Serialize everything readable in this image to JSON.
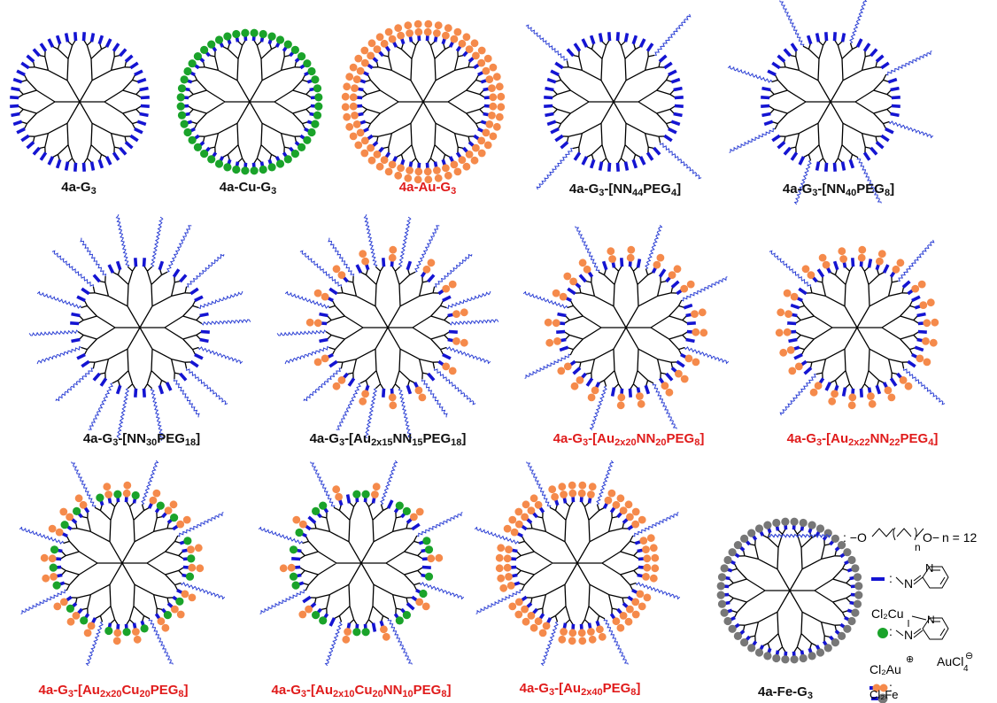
{
  "colors": {
    "ligand": "#1414d2",
    "cu": "#1aa32a",
    "au": "#f58a4b",
    "fe": "#777777",
    "peg": "#2b3fd4",
    "branch": "#000000",
    "label_black": "#111111",
    "label_red": "#e01b1b"
  },
  "labels": [
    {
      "id": "g3",
      "parts": [
        {
          "t": "4a-G"
        },
        {
          "t": "3",
          "s": "sub"
        }
      ],
      "red": false
    },
    {
      "id": "cu_g3",
      "parts": [
        {
          "t": "4a-Cu-G"
        },
        {
          "t": "3",
          "s": "sub"
        }
      ],
      "red": false
    },
    {
      "id": "au_g3",
      "parts": [
        {
          "t": "4a-Au-G"
        },
        {
          "t": "3",
          "s": "sub"
        }
      ],
      "red": true
    },
    {
      "id": "nn44peg4",
      "parts": [
        {
          "t": "4a-G"
        },
        {
          "t": "3",
          "s": "sub"
        },
        {
          "t": "-[NN"
        },
        {
          "t": "44",
          "s": "sub"
        },
        {
          "t": "PEG"
        },
        {
          "t": "4",
          "s": "sub"
        },
        {
          "t": "]"
        }
      ],
      "red": false
    },
    {
      "id": "nn40peg8",
      "parts": [
        {
          "t": "4a-G"
        },
        {
          "t": "3",
          "s": "sub"
        },
        {
          "t": "-[NN"
        },
        {
          "t": "40",
          "s": "sub"
        },
        {
          "t": "PEG"
        },
        {
          "t": "8",
          "s": "sub"
        },
        {
          "t": "]"
        }
      ],
      "red": false
    },
    {
      "id": "nn30peg18",
      "parts": [
        {
          "t": "4a-G"
        },
        {
          "t": "3",
          "s": "sub"
        },
        {
          "t": "-[NN"
        },
        {
          "t": "30",
          "s": "sub"
        },
        {
          "t": "PEG"
        },
        {
          "t": "18",
          "s": "sub"
        },
        {
          "t": "]"
        }
      ],
      "red": false
    },
    {
      "id": "au15nn15peg18",
      "parts": [
        {
          "t": "4a-G"
        },
        {
          "t": "3",
          "s": "sub"
        },
        {
          "t": "-[Au"
        },
        {
          "t": "2x15",
          "s": "sub"
        },
        {
          "t": "NN"
        },
        {
          "t": "15",
          "s": "sub"
        },
        {
          "t": "PEG"
        },
        {
          "t": "18",
          "s": "sub"
        },
        {
          "t": "]"
        }
      ],
      "red": false
    },
    {
      "id": "au20nn20peg8",
      "parts": [
        {
          "t": "4a-G"
        },
        {
          "t": "3",
          "s": "sub"
        },
        {
          "t": "-[Au"
        },
        {
          "t": "2x20",
          "s": "sub"
        },
        {
          "t": "NN"
        },
        {
          "t": "20",
          "s": "sub"
        },
        {
          "t": "PEG"
        },
        {
          "t": "8",
          "s": "sub"
        },
        {
          "t": "]"
        }
      ],
      "red": true
    },
    {
      "id": "au22nn22peg4",
      "parts": [
        {
          "t": "4a-G"
        },
        {
          "t": "3",
          "s": "sub"
        },
        {
          "t": "-[Au"
        },
        {
          "t": "2x22",
          "s": "sub"
        },
        {
          "t": "NN"
        },
        {
          "t": "22",
          "s": "sub"
        },
        {
          "t": "PEG"
        },
        {
          "t": "4",
          "s": "sub"
        },
        {
          "t": "]"
        }
      ],
      "red": true
    },
    {
      "id": "au20cu20peg8",
      "parts": [
        {
          "t": "4a-G"
        },
        {
          "t": "3",
          "s": "sub"
        },
        {
          "t": "-[Au"
        },
        {
          "t": "2x20",
          "s": "sub"
        },
        {
          "t": "Cu"
        },
        {
          "t": "20",
          "s": "sub"
        },
        {
          "t": "PEG"
        },
        {
          "t": "8",
          "s": "sub"
        },
        {
          "t": "]"
        }
      ],
      "red": true
    },
    {
      "id": "au10cu20nn10peg8",
      "parts": [
        {
          "t": "4a-G"
        },
        {
          "t": "3",
          "s": "sub"
        },
        {
          "t": "-[Au"
        },
        {
          "t": "2x10",
          "s": "sub"
        },
        {
          "t": "Cu"
        },
        {
          "t": "20",
          "s": "sub"
        },
        {
          "t": "NN"
        },
        {
          "t": "10",
          "s": "sub"
        },
        {
          "t": "PEG"
        },
        {
          "t": "8",
          "s": "sub"
        },
        {
          "t": "]"
        }
      ],
      "red": true
    },
    {
      "id": "au40peg8",
      "parts": [
        {
          "t": "4a-G"
        },
        {
          "t": "3",
          "s": "sub"
        },
        {
          "t": "-[Au"
        },
        {
          "t": "2x40",
          "s": "sub"
        },
        {
          "t": "PEG"
        },
        {
          "t": "8",
          "s": "sub"
        },
        {
          "t": "]"
        }
      ],
      "red": true
    },
    {
      "id": "fe_g3",
      "parts": [
        {
          "t": "4a-Fe-G"
        },
        {
          "t": "3",
          "s": "sub"
        }
      ],
      "red": false
    }
  ],
  "dendrimers": [
    {
      "id": "g3",
      "endgroups": {
        "ligand": 48
      }
    },
    {
      "id": "cu_g3",
      "endgroups": {
        "cu": 48
      }
    },
    {
      "id": "au_g3",
      "endgroups": {
        "au2": 48
      }
    },
    {
      "id": "nn44peg4",
      "endgroups": {
        "ligand": 44,
        "peg": 4
      }
    },
    {
      "id": "nn40peg8",
      "endgroups": {
        "ligand": 40,
        "peg": 8
      }
    },
    {
      "id": "nn30peg18",
      "endgroups": {
        "ligand": 30,
        "peg": 18
      }
    },
    {
      "id": "au15nn15peg18",
      "endgroups": {
        "au2": 15,
        "ligand": 15,
        "peg": 18
      }
    },
    {
      "id": "au20nn20peg8",
      "endgroups": {
        "au2": 20,
        "ligand": 20,
        "peg": 8
      }
    },
    {
      "id": "au22nn22peg4",
      "endgroups": {
        "au2": 22,
        "ligand": 22,
        "peg": 4
      }
    },
    {
      "id": "au20cu20peg8",
      "endgroups": {
        "au2": 20,
        "cu": 20,
        "peg": 8
      }
    },
    {
      "id": "au10cu20nn10peg8",
      "endgroups": {
        "au2": 10,
        "cu": 20,
        "ligand": 10,
        "peg": 8
      }
    },
    {
      "id": "au40peg8",
      "endgroups": {
        "au2": 40,
        "peg": 8
      }
    },
    {
      "id": "fe_g3",
      "endgroups": {
        "fe": 48
      }
    }
  ],
  "legend": {
    "peg_formula": ": −O",
    "peg_n_sub": "n",
    "peg_tail": "O−",
    "peg_n": "n = 12",
    "ligand_colon": ":",
    "pyridine_n": "N",
    "cu_metal": "Cl₂Cu",
    "au_metal": "Cl₂Au",
    "au_charge": "⊕",
    "au_counter": "AuCl",
    "au_counter_sub": "4",
    "au_counter_charge": "⊖",
    "fe_metal": "Cl₂Fe"
  }
}
